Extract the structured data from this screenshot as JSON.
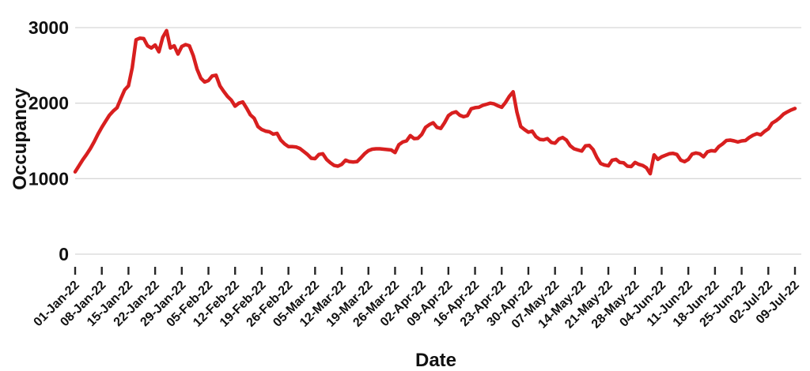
{
  "chart_data": {
    "type": "line",
    "title": "",
    "xlabel": "Date",
    "ylabel": "Occupancy",
    "ylim": [
      0,
      3000
    ],
    "y_ticks": [
      0,
      1000,
      2000,
      3000
    ],
    "grid": "horizontal",
    "legend": "none",
    "x_tick_labels": [
      "01-Jan-22",
      "08-Jan-22",
      "15-Jan-22",
      "22-Jan-22",
      "29-Jan-22",
      "05-Feb-22",
      "12-Feb-22",
      "19-Feb-22",
      "26-Feb-22",
      "05-Mar-22",
      "12-Mar-22",
      "19-Mar-22",
      "26-Mar-22",
      "02-Apr-22",
      "09-Apr-22",
      "16-Apr-22",
      "23-Apr-22",
      "30-Apr-22",
      "07-May-22",
      "14-May-22",
      "21-May-22",
      "28-May-22",
      "04-Jun-22",
      "11-Jun-22",
      "18-Jun-22",
      "25-Jun-22",
      "02-Jul-22",
      "09-Jul-22"
    ],
    "x_unit": "daily values from 01-Jan-22 to 09-Jul-22",
    "series": [
      {
        "name": "Occupancy",
        "color": "#d81f1f",
        "values": [
          1090,
          1170,
          1250,
          1320,
          1400,
          1490,
          1590,
          1680,
          1760,
          1840,
          1895,
          1940,
          2060,
          2175,
          2230,
          2470,
          2840,
          2860,
          2855,
          2760,
          2730,
          2770,
          2680,
          2870,
          2960,
          2730,
          2760,
          2650,
          2750,
          2775,
          2760,
          2630,
          2450,
          2330,
          2280,
          2300,
          2360,
          2370,
          2230,
          2155,
          2090,
          2040,
          1960,
          2000,
          2015,
          1935,
          1845,
          1800,
          1690,
          1650,
          1630,
          1620,
          1590,
          1600,
          1510,
          1460,
          1425,
          1425,
          1420,
          1400,
          1360,
          1320,
          1270,
          1265,
          1320,
          1330,
          1255,
          1210,
          1175,
          1165,
          1190,
          1245,
          1225,
          1220,
          1225,
          1275,
          1330,
          1370,
          1390,
          1395,
          1395,
          1390,
          1385,
          1380,
          1345,
          1450,
          1485,
          1500,
          1570,
          1530,
          1535,
          1585,
          1680,
          1715,
          1740,
          1680,
          1665,
          1740,
          1835,
          1870,
          1885,
          1840,
          1820,
          1835,
          1925,
          1940,
          1945,
          1970,
          1985,
          2000,
          1990,
          1965,
          1945,
          2010,
          2090,
          2150,
          1880,
          1690,
          1650,
          1615,
          1630,
          1555,
          1520,
          1515,
          1530,
          1480,
          1470,
          1525,
          1545,
          1510,
          1435,
          1395,
          1380,
          1365,
          1435,
          1440,
          1385,
          1280,
          1200,
          1180,
          1170,
          1245,
          1255,
          1215,
          1210,
          1165,
          1160,
          1215,
          1190,
          1175,
          1145,
          1065,
          1315,
          1255,
          1290,
          1310,
          1330,
          1335,
          1320,
          1245,
          1225,
          1255,
          1325,
          1340,
          1330,
          1290,
          1355,
          1370,
          1365,
          1425,
          1460,
          1505,
          1510,
          1500,
          1485,
          1500,
          1505,
          1545,
          1575,
          1595,
          1580,
          1625,
          1660,
          1735,
          1765,
          1805,
          1855,
          1885,
          1910,
          1930
        ]
      }
    ]
  },
  "colors": {
    "line": "#d81f1f",
    "gridline": "#d8d8d8",
    "tick_mark": "#262626",
    "text": "#111111",
    "background": "#ffffff"
  }
}
